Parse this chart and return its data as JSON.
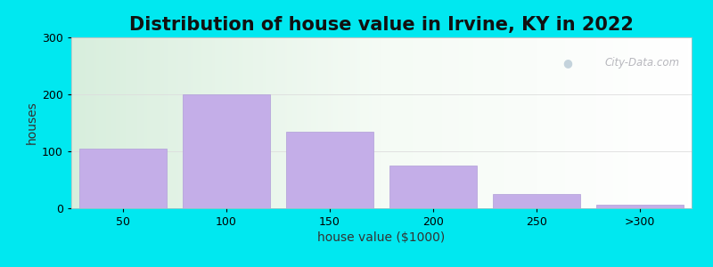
{
  "title": "Distribution of house value in Irvine, KY in 2022",
  "xlabel": "house value ($1000)",
  "ylabel": "houses",
  "categories": [
    "50",
    "100",
    "150",
    "200",
    "250",
    ">300"
  ],
  "values": [
    105,
    200,
    135,
    75,
    25,
    7
  ],
  "bar_color": "#c4aee8",
  "bar_edgecolor": "#b09ed8",
  "ylim": [
    0,
    300
  ],
  "yticks": [
    0,
    100,
    200,
    300
  ],
  "figure_bg": "#00e8f0",
  "watermark_text": "City-Data.com",
  "title_fontsize": 15,
  "axis_label_fontsize": 10,
  "tick_fontsize": 9
}
